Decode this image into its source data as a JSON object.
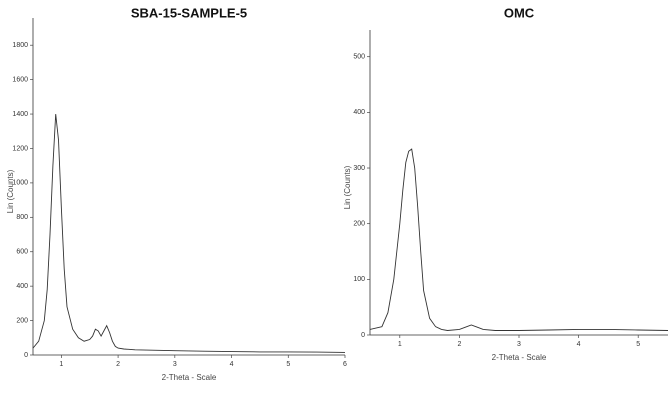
{
  "chart_data": [
    {
      "type": "line",
      "title": "SBA-15-SAMPLE-5",
      "x_label": "2-Theta - Scale",
      "y_label": "Lin (Counts)",
      "xlim": [
        0.5,
        6
      ],
      "xticks": [
        1,
        2,
        3,
        4,
        5,
        6
      ],
      "ylim": [
        0,
        1900
      ],
      "yticks": [
        0,
        200,
        400,
        600,
        800,
        1000,
        1200,
        1400,
        1600,
        1800
      ],
      "series": [
        {
          "name": "SBA-15-SAMPLE-5",
          "color": "#333333",
          "x": [
            0.5,
            0.6,
            0.7,
            0.75,
            0.8,
            0.85,
            0.9,
            0.95,
            1.0,
            1.05,
            1.1,
            1.2,
            1.3,
            1.4,
            1.5,
            1.55,
            1.6,
            1.65,
            1.7,
            1.75,
            1.8,
            1.85,
            1.9,
            1.95,
            2.0,
            2.1,
            2.3,
            2.6,
            3,
            3.5,
            4,
            4.5,
            5,
            5.5,
            6
          ],
          "values": [
            40,
            80,
            200,
            380,
            700,
            1100,
            1400,
            1250,
            850,
            500,
            280,
            150,
            100,
            80,
            90,
            110,
            150,
            140,
            110,
            140,
            170,
            130,
            80,
            50,
            40,
            35,
            30,
            28,
            25,
            22,
            20,
            18,
            18,
            17,
            15
          ]
        }
      ]
    },
    {
      "type": "line",
      "title": "OMC",
      "x_label": "2-Theta - Scale",
      "y_label": "Lin (Counts)",
      "xlim": [
        0.5,
        5.5
      ],
      "xticks": [
        1,
        2,
        3,
        4,
        5
      ],
      "ylim": [
        0,
        530
      ],
      "yticks": [
        0,
        100,
        200,
        300,
        400,
        500
      ],
      "series": [
        {
          "name": "OMC",
          "color": "#333333",
          "x": [
            0.5,
            0.7,
            0.8,
            0.9,
            1.0,
            1.05,
            1.1,
            1.15,
            1.2,
            1.25,
            1.3,
            1.35,
            1.4,
            1.5,
            1.6,
            1.7,
            1.8,
            2.0,
            2.1,
            2.2,
            2.3,
            2.4,
            2.6,
            3,
            3.5,
            4,
            4.5,
            5,
            5.5
          ],
          "values": [
            10,
            15,
            40,
            100,
            200,
            260,
            310,
            330,
            334,
            300,
            230,
            150,
            80,
            30,
            15,
            10,
            8,
            10,
            14,
            18,
            14,
            10,
            8,
            8,
            9,
            10,
            10,
            9,
            8
          ]
        }
      ]
    }
  ]
}
